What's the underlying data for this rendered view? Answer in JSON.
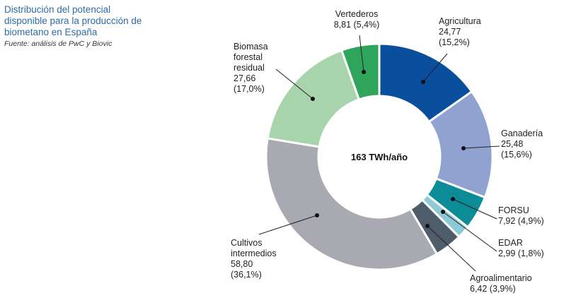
{
  "caption": {
    "title": "Distribución del potencial disponible para la producción de biometano en España",
    "source": "Fuente: análisis de PwC y Biovic"
  },
  "chart_data": {
    "type": "pie",
    "center_label": "163 TWh/año",
    "slices": [
      {
        "name": "Agricultura",
        "value": "24,77",
        "pct": "(15,2%)",
        "v": 24.77,
        "color": "#0a4f9e"
      },
      {
        "name": "Ganadería",
        "value": "25,48",
        "pct": "(15,6%)",
        "v": 25.48,
        "color": "#8fa2d0"
      },
      {
        "name": "FORSU",
        "value": "7,92 (4,9%)",
        "pct": "",
        "v": 7.92,
        "color": "#0b8c96"
      },
      {
        "name": "EDAR",
        "value": "2,99 (1,8%)",
        "pct": "",
        "v": 2.99,
        "color": "#8ccad6"
      },
      {
        "name": "Agroalimentario",
        "value": "6,42 (3,9%)",
        "pct": "",
        "v": 6.42,
        "color": "#4e5d69"
      },
      {
        "name": "Cultivos intermedios",
        "value": "58,80",
        "pct": "(36,1%)",
        "v": 58.8,
        "color": "#a9a9b2"
      },
      {
        "name": "Biomasa forestal residual",
        "value": "27,66",
        "pct": "(17,0%)",
        "v": 27.66,
        "color": "#a8d4ac"
      },
      {
        "name": "Vertederos",
        "value": "8,81 (5,4%)",
        "pct": "",
        "v": 8.81,
        "color": "#2fa55c"
      }
    ]
  }
}
